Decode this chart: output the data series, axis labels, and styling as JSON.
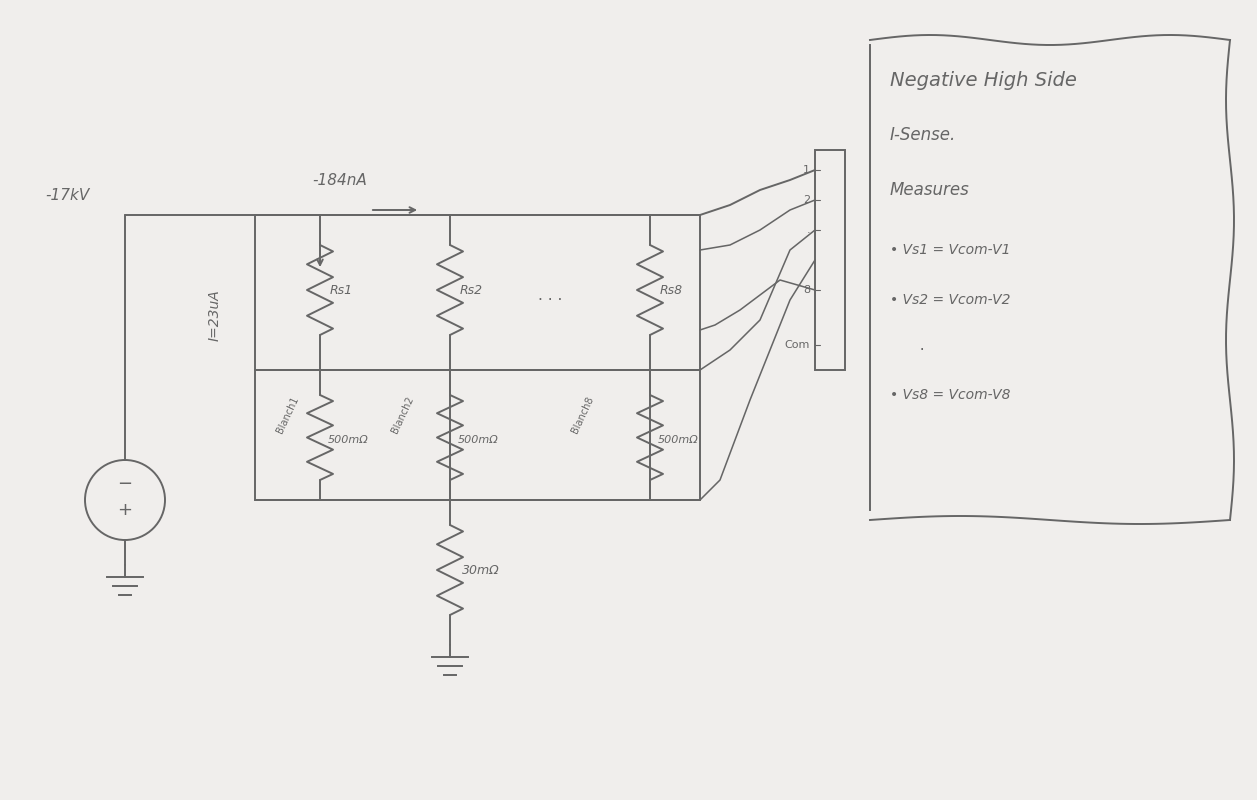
{
  "bg_color": "#f0eeec",
  "pencil_color": "#888888",
  "dark_pencil": "#666666",
  "note_lines": [
    "Negative High Side",
    "I-Sense.",
    "Measures",
    "• Vs1 = Vcom-V1",
    "• Vs2 = Vcom-V2",
    "  .",
    "• Vs8 = Vcom-V8"
  ],
  "label_voltage": "-17kV",
  "label_current_top": "-184nA",
  "label_current_left": "I=23uA",
  "label_rs1": "Rs1",
  "label_rs2": "Rs2",
  "label_rs8": "Rs8",
  "label_blanch1": "Blanch1",
  "label_blanch2": "Blanch2",
  "label_blanch8": "Blanch8",
  "label_500m1": "500mΩ",
  "label_500m2": "500mΩ",
  "label_500m8": "500mΩ",
  "label_30m": "30mΩ",
  "label_com": "Com"
}
